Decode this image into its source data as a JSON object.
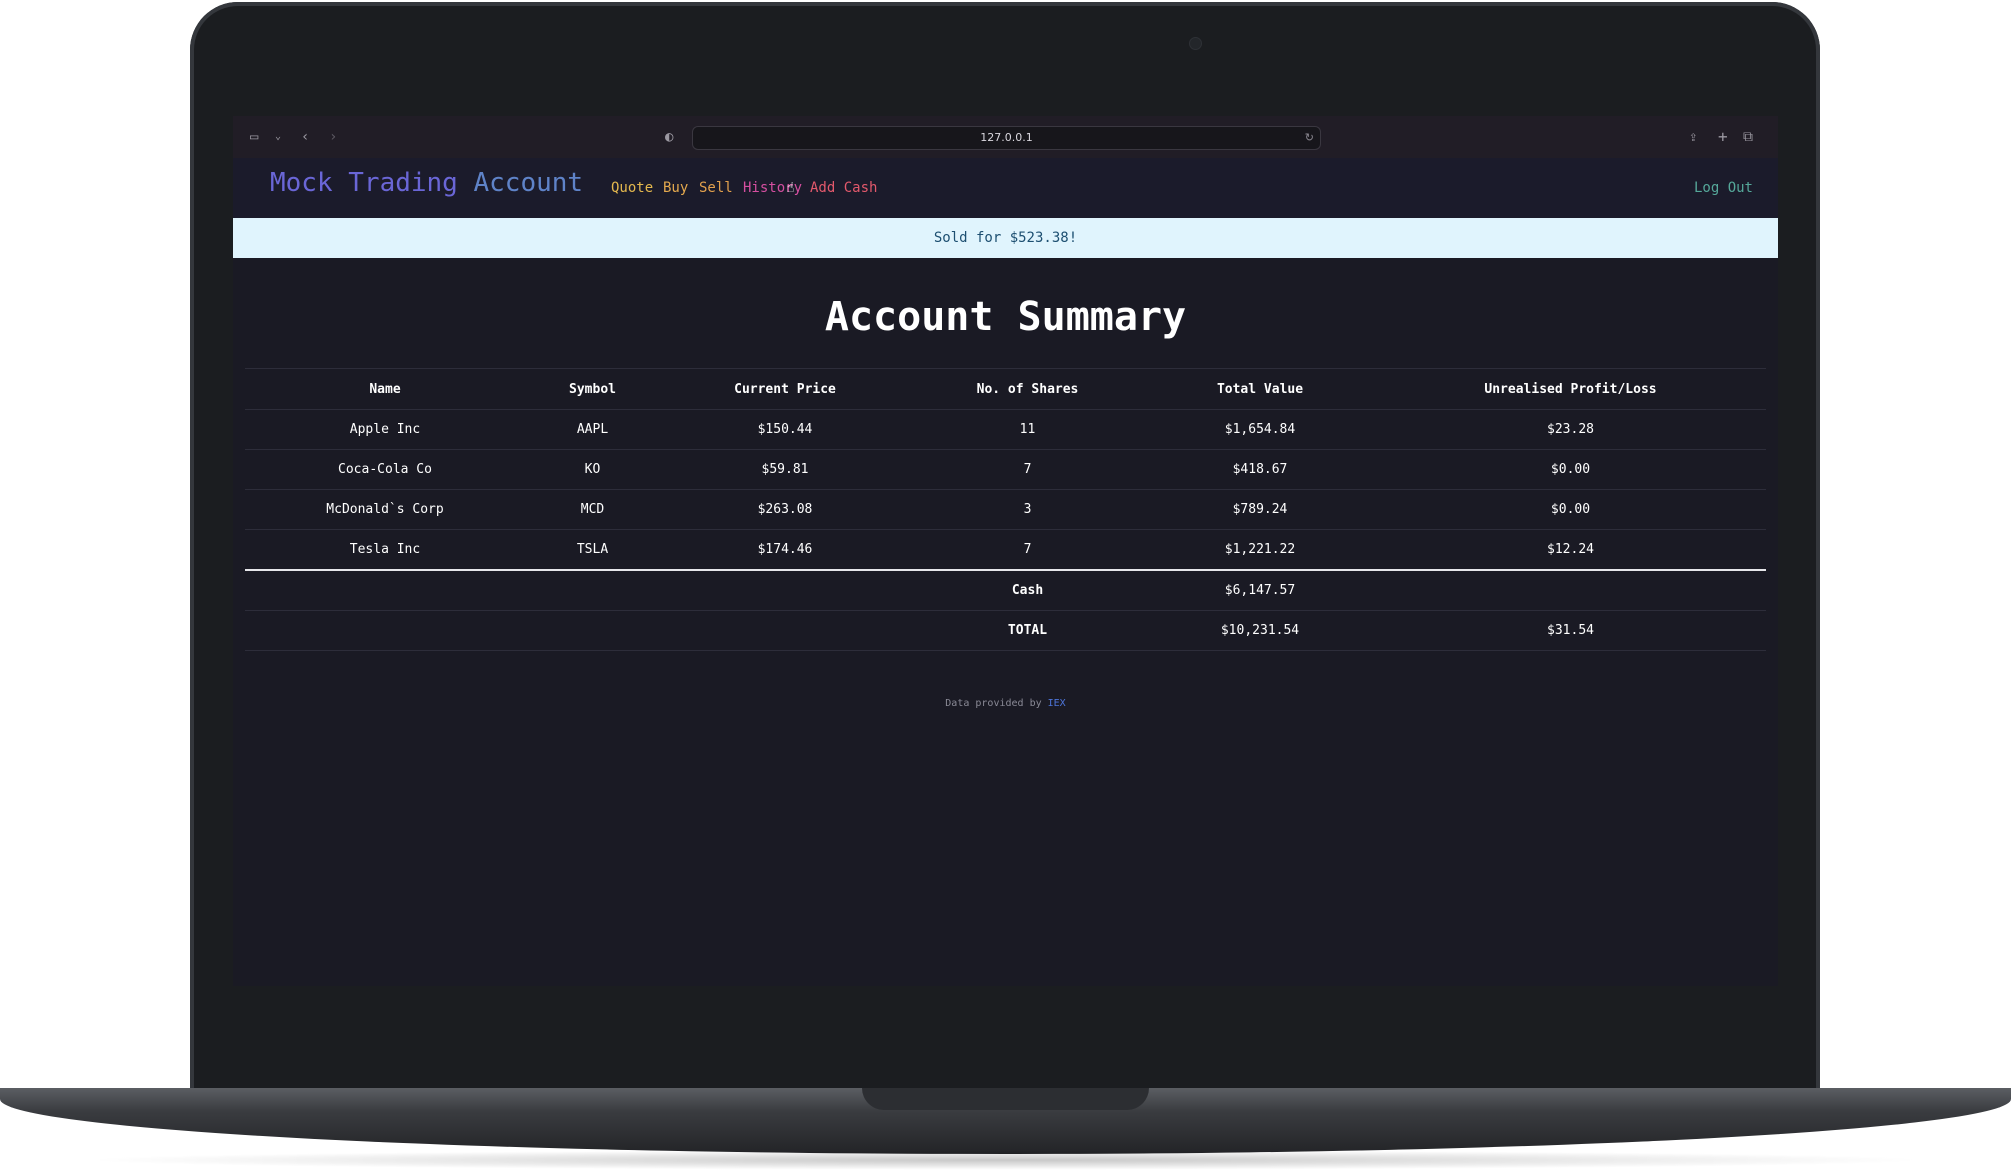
{
  "browser": {
    "url": "127.0.0.1",
    "icons": {
      "sidebar": "sidebar-icon",
      "back": "chevron-left-icon",
      "forward": "chevron-right-icon",
      "shield": "shield-icon",
      "reload": "reload-icon",
      "share": "share-icon",
      "new_tab": "plus-icon",
      "tabs": "tabs-icon"
    }
  },
  "navbar": {
    "brand_part1": "Mock Trading ",
    "brand_part2": "Account",
    "links": [
      {
        "label": "Quote",
        "color": "#e4b84e"
      },
      {
        "label": "Buy",
        "color": "#e4a94e"
      },
      {
        "label": "Sell",
        "color": "#e3a14d"
      },
      {
        "label": "History",
        "color": "#d54fa0"
      },
      {
        "label": "Add Cash",
        "color": "#e3596c"
      }
    ],
    "logout": "Log Out"
  },
  "alert": {
    "message": "Sold for $523.38!"
  },
  "page": {
    "title": "Account Summary"
  },
  "table": {
    "headers": [
      "Name",
      "Symbol",
      "Current Price",
      "No. of Shares",
      "Total Value",
      "Unrealised Profit/Loss"
    ],
    "rows": [
      [
        "Apple Inc",
        "AAPL",
        "$150.44",
        "11",
        "$1,654.84",
        "$23.28"
      ],
      [
        "Coca-Cola Co",
        "KO",
        "$59.81",
        "7",
        "$418.67",
        "$0.00"
      ],
      [
        "McDonald`s Corp",
        "MCD",
        "$263.08",
        "3",
        "$789.24",
        "$0.00"
      ],
      [
        "Tesla Inc",
        "TSLA",
        "$174.46",
        "7",
        "$1,221.22",
        "$12.24"
      ]
    ],
    "cash": {
      "label": "Cash",
      "value": "$6,147.57"
    },
    "total": {
      "label": "TOTAL",
      "value": "$10,231.54",
      "pnl": "$31.54"
    }
  },
  "footer": {
    "text": "Data provided by ",
    "link": "IEX"
  }
}
